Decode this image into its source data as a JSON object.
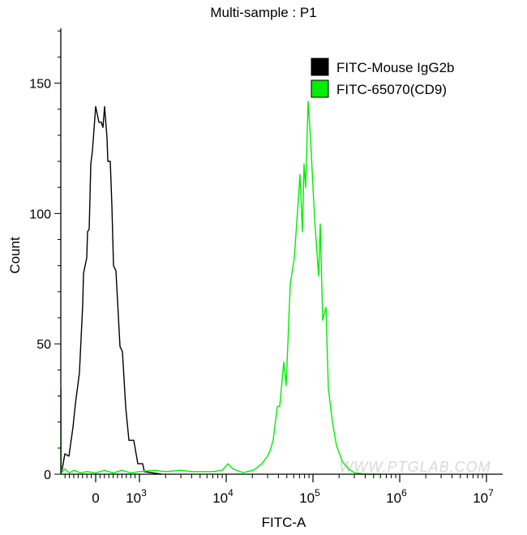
{
  "chart_data": {
    "type": "line",
    "title": "Multi-sample : P1",
    "xlabel": "FITC-A",
    "ylabel": "Count",
    "x_scale": "biexponential (linear below 10^3, log above)",
    "xlim": [
      -790,
      10000000
    ],
    "ylim": [
      0,
      171
    ],
    "x_ticks": [
      {
        "value": 0,
        "base": "0",
        "exp": ""
      },
      {
        "value": 1000,
        "base": "10",
        "exp": "3"
      },
      {
        "value": 10000,
        "base": "10",
        "exp": "4"
      },
      {
        "value": 100000,
        "base": "10",
        "exp": "5"
      },
      {
        "value": 1000000,
        "base": "10",
        "exp": "6"
      },
      {
        "value": 10000000,
        "base": "10",
        "exp": "7"
      }
    ],
    "y_ticks": [
      0,
      50,
      100,
      150
    ],
    "grid": false,
    "legend_position": "top-right",
    "watermark": "WWW.PTGLAB.COM",
    "series": [
      {
        "name": "FITC-Mouse IgG2b",
        "color": "#000000",
        "x": [
          -778,
          -704,
          -611,
          -519,
          -463,
          -370,
          -296,
          -278,
          -204,
          -185,
          -148,
          -111,
          -74,
          0,
          74,
          130,
          167,
          204,
          259,
          278,
          333,
          370,
          407,
          463,
          556,
          611,
          685,
          759,
          870,
          963,
          1090,
          1138,
          1800
        ],
        "y": [
          0.6,
          7.8,
          6.9,
          18,
          27,
          39,
          65,
          77,
          83,
          93,
          94,
          119,
          124,
          141,
          135,
          135,
          133,
          141,
          129,
          120,
          120,
          103,
          80,
          78,
          49,
          47,
          26,
          13,
          13,
          4,
          4,
          1,
          0
        ]
      },
      {
        "name": "FITC-65070(CD9)",
        "color": "#00ee00",
        "x": [
          -790,
          -785,
          -760,
          -700,
          -600,
          -500,
          -350,
          -200,
          0,
          200,
          400,
          600,
          800,
          1000,
          1500,
          2000,
          3000,
          4000,
          5000,
          7000,
          9000,
          10500,
          12000,
          15700,
          20800,
          25800,
          30000,
          32000,
          34800,
          38800,
          41400,
          46100,
          49200,
          54700,
          61000,
          66400,
          70900,
          75600,
          78900,
          82400,
          87900,
          93700,
          104400,
          116200,
          121400,
          129400,
          141200,
          150600,
          167600,
          186700,
          216900,
          257600,
          300000,
          400000,
          600000
        ],
        "y": [
          33,
          2,
          1,
          2,
          0.5,
          1.5,
          0.5,
          1,
          0.5,
          1.5,
          0.5,
          1.5,
          0.5,
          1,
          1.5,
          1,
          1.5,
          1,
          1,
          1,
          1.5,
          4,
          2,
          0.6,
          1.6,
          4,
          7,
          9,
          13,
          26,
          26,
          43,
          34,
          73,
          83,
          101,
          115,
          93,
          119,
          110,
          143,
          129,
          98,
          76,
          96,
          59,
          64,
          33,
          20,
          11,
          5,
          2,
          0.6,
          0,
          0
        ]
      }
    ]
  }
}
